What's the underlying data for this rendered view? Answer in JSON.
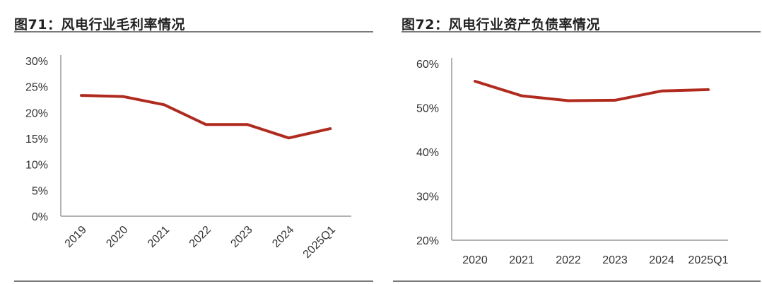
{
  "chart_data": [
    {
      "type": "line",
      "title": "图71：风电行业毛利率情况",
      "categories": [
        "2019",
        "2020",
        "2021",
        "2022",
        "2023",
        "2024",
        "2025Q1"
      ],
      "series": [
        {
          "values": [
            23.3,
            23.1,
            21.5,
            17.7,
            17.7,
            15.1,
            16.9
          ],
          "color": "#b02a1e"
        }
      ],
      "yticks": [
        "0%",
        "5%",
        "10%",
        "15%",
        "20%",
        "25%",
        "30%"
      ],
      "ylim": [
        0,
        30
      ],
      "xlabel": "",
      "ylabel": "",
      "grid": false,
      "x_tick_rotation": "diagonal"
    },
    {
      "type": "line",
      "title": "图72：风电行业资产负债率情况",
      "categories": [
        "2020",
        "2021",
        "2022",
        "2023",
        "2024",
        "2025Q1"
      ],
      "series": [
        {
          "values": [
            56.0,
            52.7,
            51.6,
            51.7,
            53.8,
            54.1
          ],
          "color": "#b02a1e"
        }
      ],
      "yticks": [
        "20%",
        "30%",
        "40%",
        "50%",
        "60%"
      ],
      "ylim": [
        20,
        60
      ],
      "xlabel": "",
      "ylabel": "",
      "grid": false
    }
  ]
}
